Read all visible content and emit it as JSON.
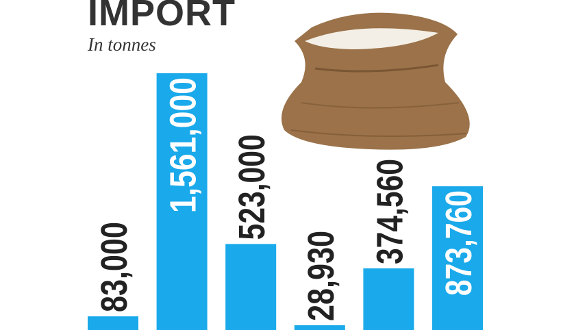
{
  "chart_data": {
    "type": "bar",
    "title": "IMPORT",
    "subtitle": "In tonnes",
    "categories": [
      "",
      "",
      "",
      "",
      "",
      ""
    ],
    "values": [
      83000,
      1561000,
      523000,
      28930,
      374560,
      873760
    ],
    "labels": [
      "83,000",
      "1,561,000",
      "523,000",
      "28,930",
      "374,560",
      "873,760"
    ],
    "bar_color": "#1aa9ea",
    "label_color": "#222222",
    "label_inside_color": "#ffffff",
    "illustration": "rice-sack",
    "ylim": [
      0,
      1561000
    ],
    "grid": false
  }
}
